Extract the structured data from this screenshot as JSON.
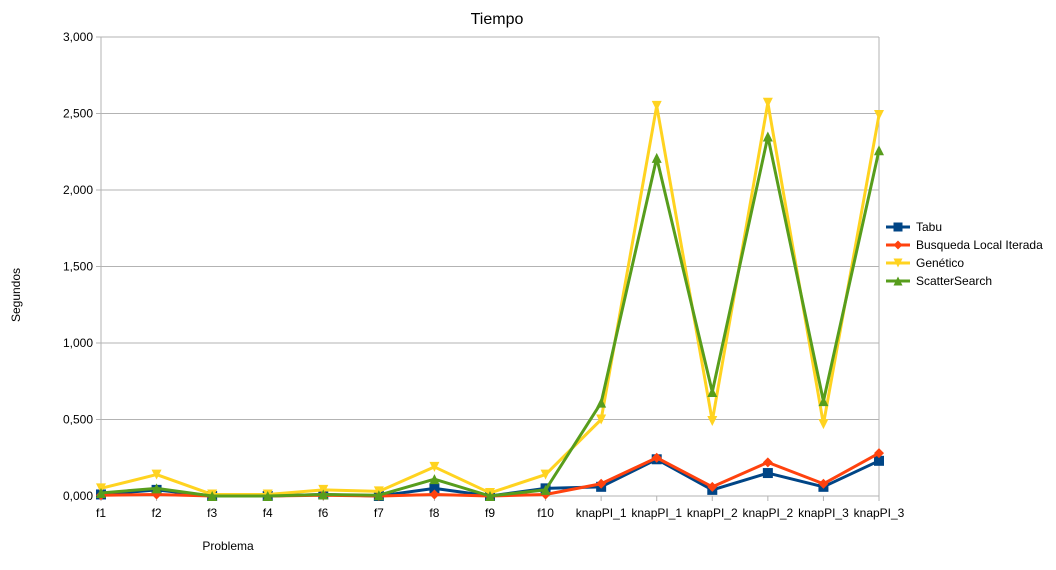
{
  "chart_data": {
    "type": "line",
    "title": "Tiempo",
    "xlabel": "Problema",
    "ylabel": "Segundos",
    "ylim": [
      0,
      3
    ],
    "yticks": [
      "0,000",
      "0,500",
      "1,000",
      "1,500",
      "2,000",
      "2,500",
      "3,000"
    ],
    "grid": true,
    "legend_position": "right",
    "categories": [
      "f1",
      "f2",
      "f3",
      "f4",
      "f6",
      "f7",
      "f8",
      "f9",
      "f10",
      "knapPI_1",
      "knapPI_1",
      "knapPI_2",
      "knapPI_2",
      "knapPI_3",
      "knapPI_3"
    ],
    "series": [
      {
        "name": "Tabu",
        "color": "#004586",
        "marker": "square",
        "values": [
          0.01,
          0.04,
          0.0,
          0.0,
          0.01,
          0.0,
          0.05,
          0.0,
          0.05,
          0.06,
          0.24,
          0.04,
          0.15,
          0.06,
          0.23
        ]
      },
      {
        "name": "Busqueda Local Iterada",
        "color": "#ff420e",
        "marker": "diamond",
        "values": [
          0.005,
          0.01,
          0.0,
          0.0,
          0.005,
          0.0,
          0.01,
          0.0,
          0.01,
          0.08,
          0.25,
          0.06,
          0.22,
          0.08,
          0.28
        ]
      },
      {
        "name": "Genético",
        "color": "#ffd320",
        "marker": "triangle-down",
        "values": [
          0.05,
          0.14,
          0.01,
          0.01,
          0.04,
          0.03,
          0.19,
          0.02,
          0.14,
          0.5,
          2.55,
          0.49,
          2.57,
          0.47,
          2.49
        ]
      },
      {
        "name": "ScatterSearch",
        "color": "#579d1c",
        "marker": "triangle-up",
        "values": [
          0.02,
          0.05,
          0.0,
          0.0,
          0.01,
          0.005,
          0.11,
          0.0,
          0.04,
          0.61,
          2.21,
          0.68,
          2.35,
          0.62,
          2.26
        ]
      }
    ]
  }
}
